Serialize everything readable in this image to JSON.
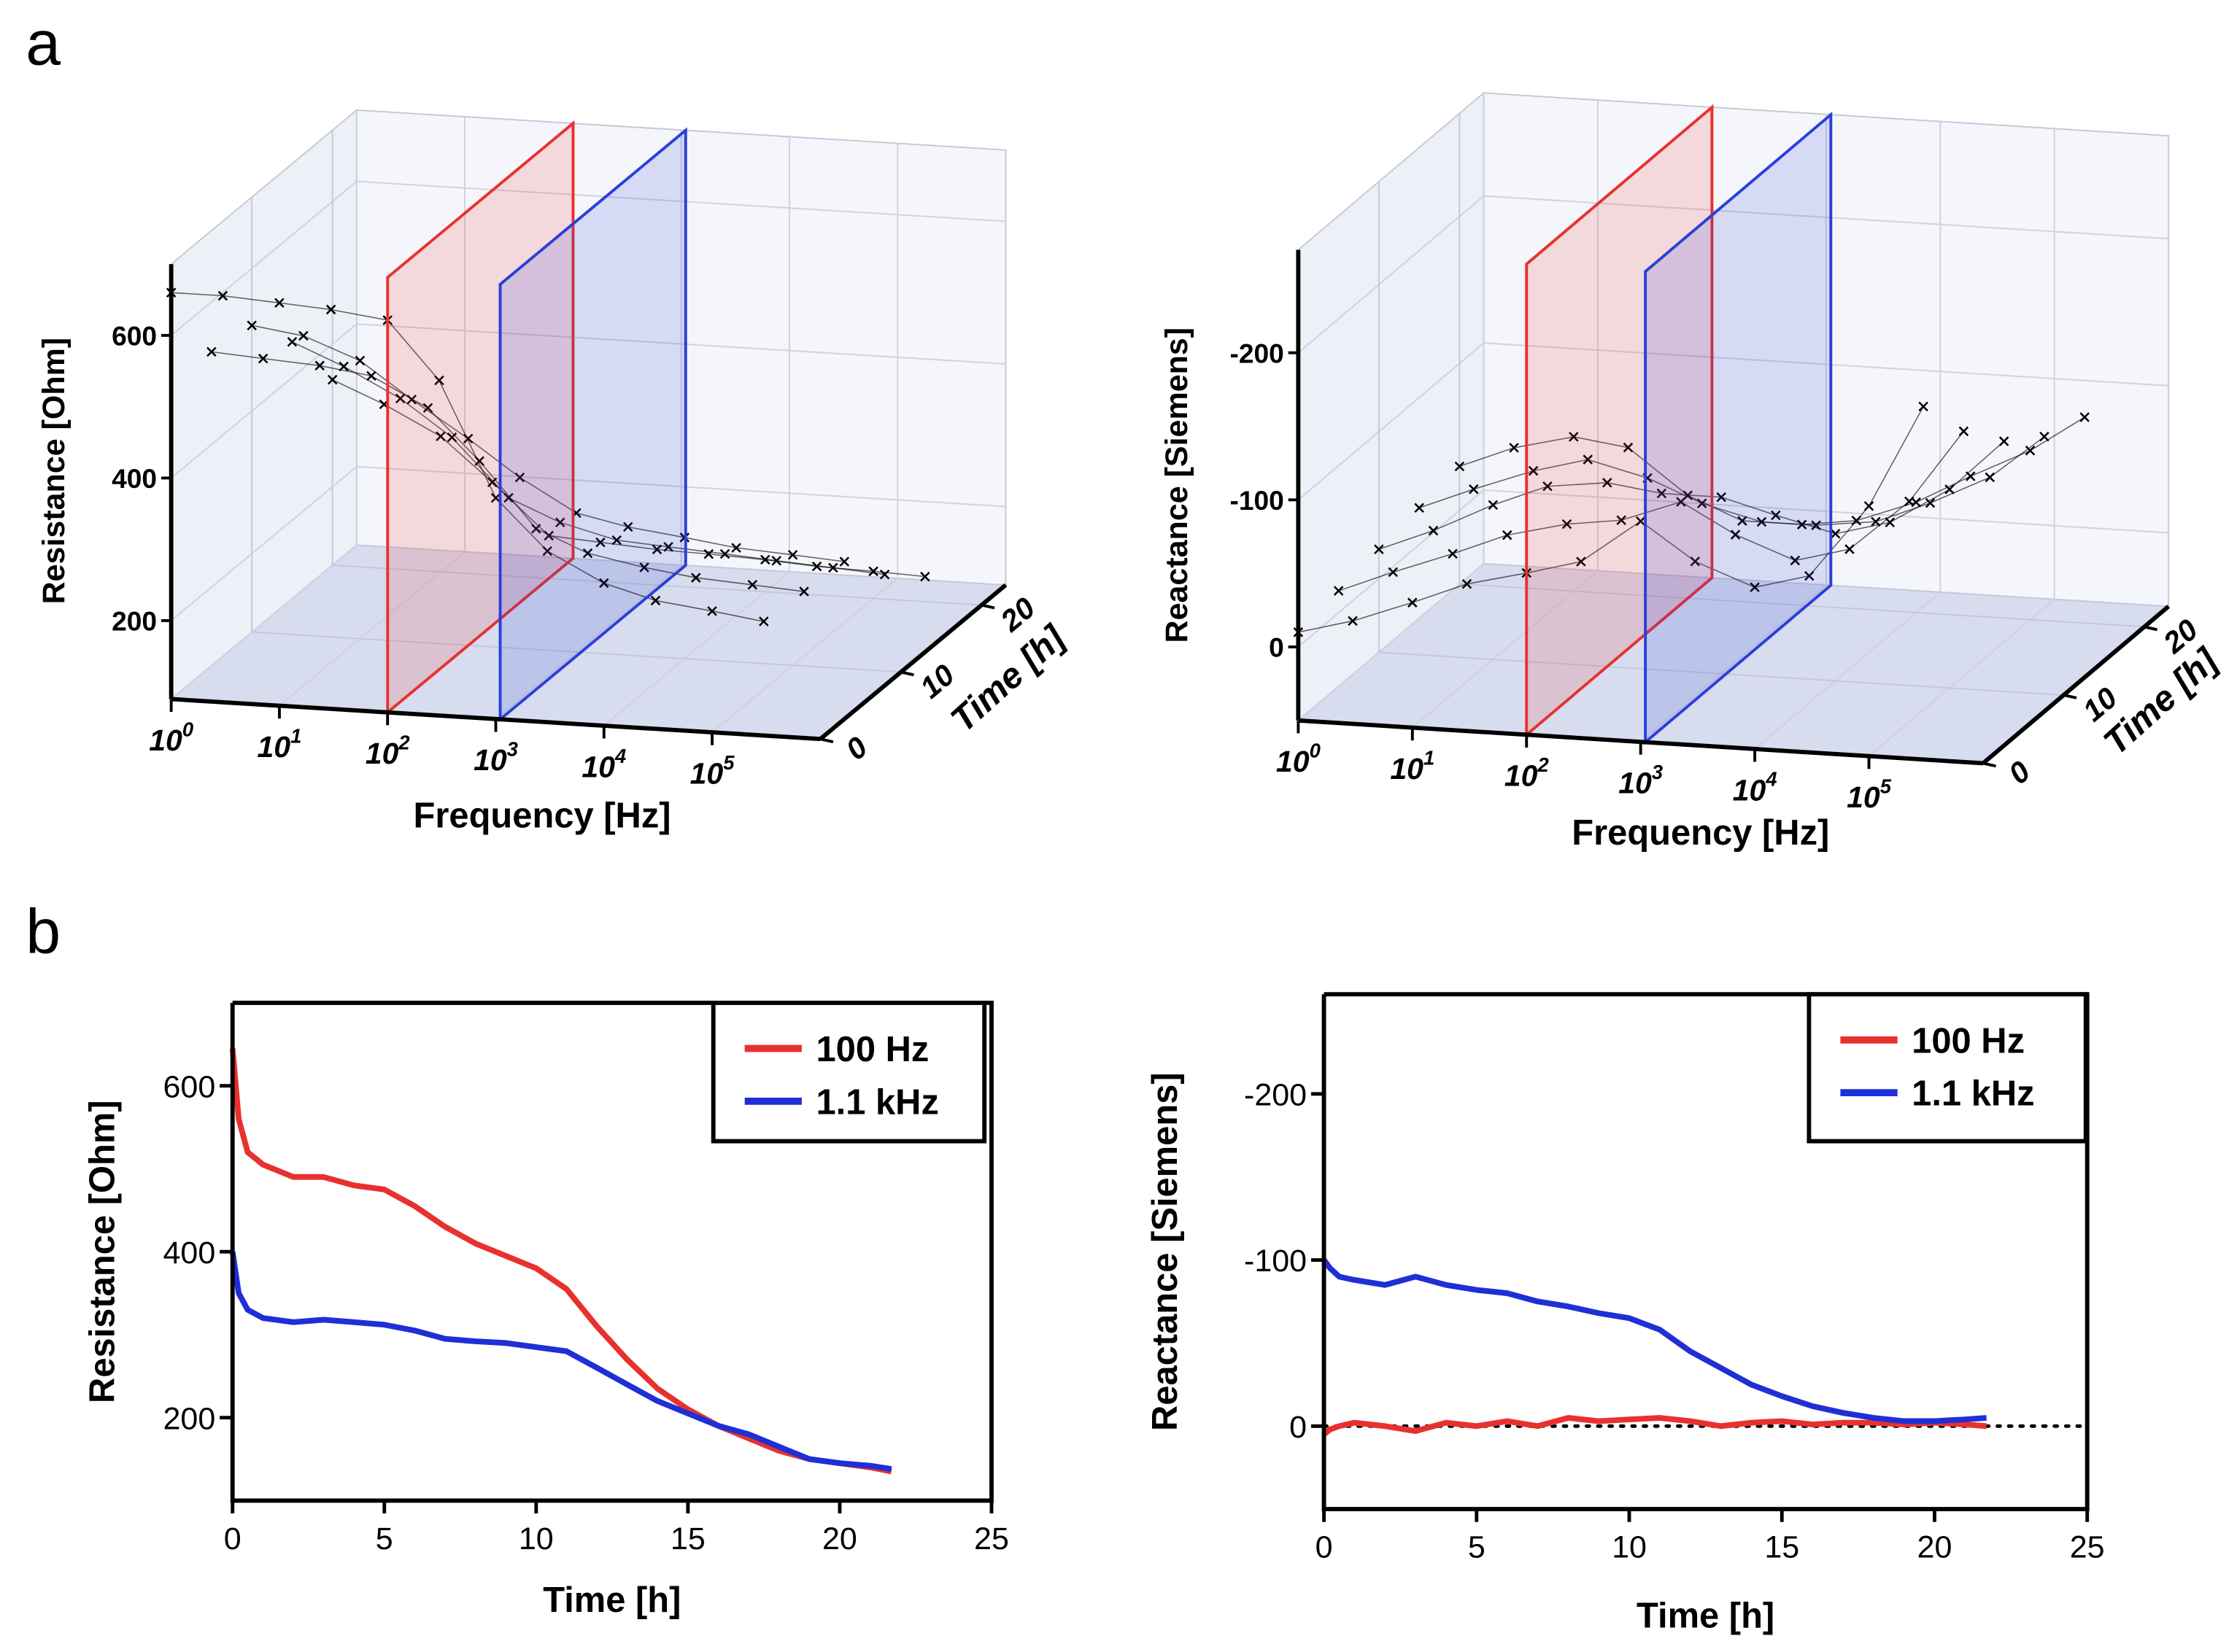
{
  "labels": [
    "a",
    "b"
  ],
  "chart_data": [
    {
      "type": "scatter3d",
      "xlabel": "Frequency [Hz]",
      "zlabel": "Resistance [Ohm]",
      "tlabel": "Time [h]",
      "log_x": true,
      "xlim": [
        1,
        1000000
      ],
      "xticks": [
        {
          "value": 1,
          "label": "10",
          "exponent": "0"
        },
        {
          "value": 10,
          "label": "10",
          "exponent": "1"
        },
        {
          "value": 100,
          "label": "10",
          "exponent": "2"
        },
        {
          "value": 1000,
          "label": "10",
          "exponent": "3"
        },
        {
          "value": 10000,
          "label": "10",
          "exponent": "4"
        },
        {
          "value": 100000,
          "label": "10",
          "exponent": "5"
        }
      ],
      "tlim": [
        0,
        23
      ],
      "tticks": [
        0,
        10,
        20
      ],
      "zlim": [
        90,
        700
      ],
      "zticks": [
        200,
        400,
        600
      ],
      "planes": [
        {
          "value": 100,
          "color": "#e8312f"
        },
        {
          "value": 1100,
          "color": "#2a3fd9"
        }
      ],
      "marker_color": "#000000",
      "x": [
        1,
        3,
        10,
        30,
        100,
        300,
        1000,
        3000,
        10000,
        30000,
        100000,
        300000
      ],
      "series": [
        {
          "time": 0,
          "values": [
            660,
            660,
            655,
            650,
            640,
            560,
            400,
            330,
            290,
            270,
            260,
            250
          ]
        },
        {
          "time": 5,
          "values": [
            530,
            525,
            520,
            510,
            470,
            400,
            310,
            280,
            265,
            255,
            250,
            245
          ]
        },
        {
          "time": 10,
          "values": [
            520,
            510,
            480,
            430,
            380,
            330,
            285,
            270,
            260,
            250,
            245,
            240
          ]
        },
        {
          "time": 15,
          "values": [
            450,
            420,
            380,
            330,
            250,
            220,
            200,
            195,
            190,
            185,
            180,
            175
          ]
        },
        {
          "time": 20,
          "values": [
            350,
            320,
            280,
            220,
            150,
            145,
            140,
            138,
            135,
            130,
            128,
            125
          ]
        }
      ]
    },
    {
      "type": "scatter3d",
      "xlabel": "Frequency [Hz]",
      "zlabel": "Reactance [Siemens]",
      "tlabel": "Time [h]",
      "log_x": true,
      "xlim": [
        1,
        1000000
      ],
      "xticks": [
        {
          "value": 1,
          "label": "10",
          "exponent": "0"
        },
        {
          "value": 10,
          "label": "10",
          "exponent": "1"
        },
        {
          "value": 100,
          "label": "10",
          "exponent": "2"
        },
        {
          "value": 1000,
          "label": "10",
          "exponent": "3"
        },
        {
          "value": 10000,
          "label": "10",
          "exponent": "4"
        },
        {
          "value": 100000,
          "label": "10",
          "exponent": "5"
        }
      ],
      "tlim": [
        0,
        23
      ],
      "tticks": [
        0,
        10,
        20
      ],
      "zlim": [
        50,
        -270
      ],
      "zticks": [
        -200,
        -100,
        0
      ],
      "planes": [
        {
          "value": 100,
          "color": "#e8312f"
        },
        {
          "value": 1100,
          "color": "#2a3fd9"
        }
      ],
      "marker_color": "#000000",
      "x": [
        1,
        3,
        10,
        30,
        100,
        300,
        1000,
        3000,
        10000,
        30000,
        100000,
        300000
      ],
      "series": [
        {
          "time": 0,
          "values": [
            -10,
            -20,
            -35,
            -50,
            -60,
            -70,
            -100,
            -75,
            -60,
            -70,
            -120,
            -190
          ]
        },
        {
          "time": 5,
          "values": [
            -15,
            -30,
            -45,
            -60,
            -70,
            -75,
            -90,
            -70,
            -55,
            -65,
            -100,
            -150
          ]
        },
        {
          "time": 10,
          "values": [
            -20,
            -35,
            -55,
            -70,
            -75,
            -70,
            -70,
            -60,
            -50,
            -60,
            -85,
            -120
          ]
        },
        {
          "time": 15,
          "values": [
            -25,
            -40,
            -55,
            -65,
            -55,
            -40,
            -30,
            -30,
            -35,
            -50,
            -70,
            -100
          ]
        },
        {
          "time": 20,
          "values": [
            -30,
            -45,
            -55,
            -50,
            -20,
            -5,
            -5,
            -10,
            -25,
            -45,
            -65,
            -90
          ]
        }
      ]
    },
    {
      "type": "line",
      "xlabel": "Time [h]",
      "ylabel": "Resistance [Ohm]",
      "xlim": [
        0,
        25
      ],
      "xticks": [
        0,
        5,
        10,
        15,
        20,
        25
      ],
      "ylim": [
        100,
        700
      ],
      "yticks": [
        200,
        400,
        600
      ],
      "legend": "upper right",
      "x": [
        0,
        0.2,
        0.5,
        1,
        2,
        3,
        4,
        5,
        6,
        7,
        8,
        9,
        10,
        11,
        12,
        13,
        14,
        15,
        16,
        17,
        18,
        19,
        20,
        21,
        21.7
      ],
      "series": [
        {
          "name": "100 Hz",
          "color": "#e8312f",
          "values": [
            645,
            560,
            520,
            505,
            490,
            490,
            480,
            475,
            455,
            430,
            410,
            395,
            380,
            355,
            310,
            270,
            235,
            210,
            190,
            175,
            160,
            150,
            145,
            140,
            135
          ]
        },
        {
          "name": "1.1 kHz",
          "color": "#1f2fd6",
          "values": [
            400,
            350,
            330,
            320,
            315,
            318,
            315,
            312,
            305,
            295,
            292,
            290,
            285,
            280,
            260,
            240,
            220,
            205,
            190,
            180,
            165,
            150,
            145,
            142,
            138
          ]
        }
      ]
    },
    {
      "type": "line",
      "xlabel": "Time [h]",
      "ylabel": "Reactance [Siemens]",
      "xlim": [
        0,
        25
      ],
      "xticks": [
        0,
        5,
        10,
        15,
        20,
        25
      ],
      "ylim": [
        50,
        -260
      ],
      "yticks": [
        -200,
        -100,
        0
      ],
      "legend": "upper right",
      "hline": 0,
      "x": [
        0,
        0.2,
        0.5,
        1,
        2,
        3,
        4,
        5,
        6,
        7,
        8,
        9,
        10,
        11,
        12,
        13,
        14,
        15,
        16,
        17,
        18,
        19,
        20,
        21,
        21.7
      ],
      "series": [
        {
          "name": "100 Hz",
          "color": "#e8312f",
          "values": [
            5,
            2,
            0,
            -2,
            0,
            3,
            -2,
            0,
            -3,
            0,
            -5,
            -3,
            -4,
            -5,
            -3,
            0,
            -2,
            -3,
            -1,
            -2,
            -2,
            -1,
            -2,
            -1,
            0
          ]
        },
        {
          "name": "1.1 kHz",
          "color": "#1f2fd6",
          "values": [
            -100,
            -95,
            -90,
            -88,
            -85,
            -90,
            -85,
            -82,
            -80,
            -75,
            -72,
            -68,
            -65,
            -58,
            -45,
            -35,
            -25,
            -18,
            -12,
            -8,
            -5,
            -3,
            -3,
            -4,
            -5
          ]
        }
      ]
    }
  ]
}
